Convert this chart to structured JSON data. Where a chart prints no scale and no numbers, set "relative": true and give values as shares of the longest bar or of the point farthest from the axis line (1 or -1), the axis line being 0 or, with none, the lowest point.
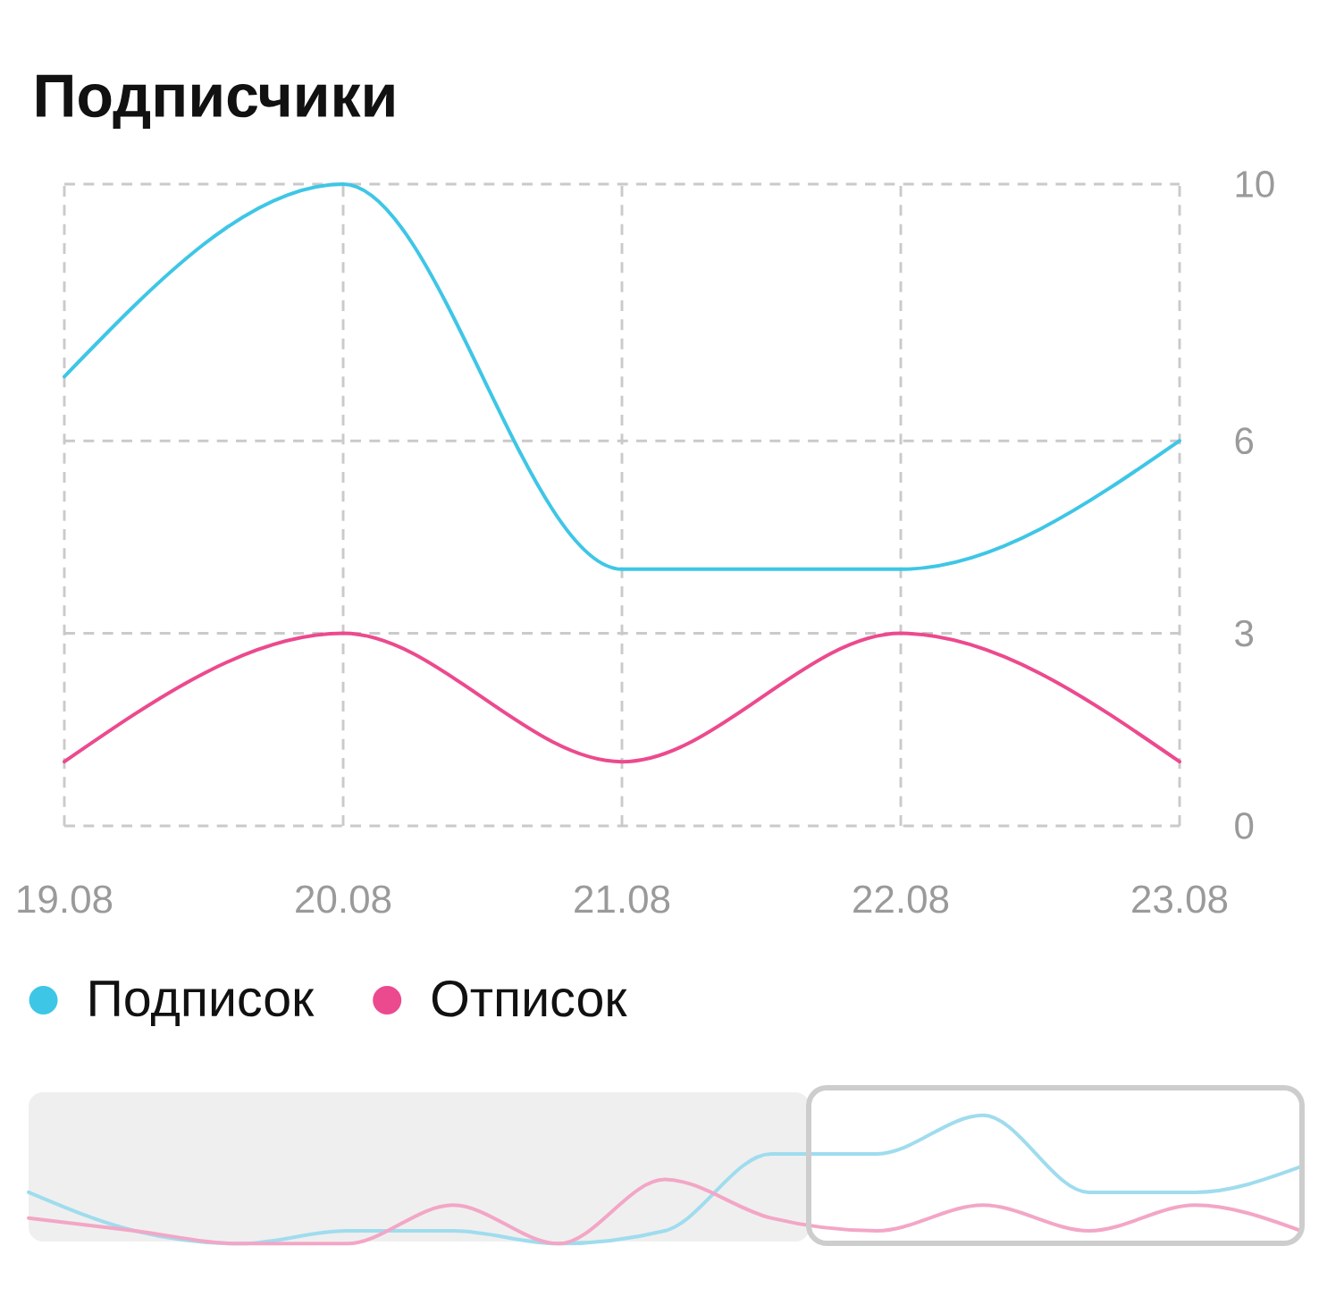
{
  "chart_data": [
    {
      "type": "line",
      "title": "Подписчики",
      "categories": [
        "19.08",
        "20.08",
        "21.08",
        "22.08",
        "23.08"
      ],
      "series": [
        {
          "name": "Подписок",
          "color": "#3ec6e6",
          "values": [
            7,
            10,
            4,
            4,
            6
          ]
        },
        {
          "name": "Отписок",
          "color": "#ec4a8e",
          "values": [
            1,
            3,
            1,
            3,
            1
          ]
        }
      ],
      "ylim": [
        0,
        10
      ],
      "yticks": [
        0,
        3,
        6,
        10
      ],
      "grid": true,
      "legend": "bottom left"
    },
    {
      "type": "line",
      "relative": true,
      "categories": [
        null,
        null,
        null,
        null,
        null,
        null,
        null,
        null,
        null,
        null,
        null,
        null,
        null
      ],
      "series": [
        {
          "color": "#9fdcee",
          "values": [
            0.4,
            0.1,
            0,
            0.1,
            0.1,
            0,
            0.1,
            0.7,
            0.7,
            1,
            0.4,
            0.4,
            0.6
          ]
        },
        {
          "color": "#f3a6c6",
          "values": [
            0.2,
            0.1,
            0,
            0,
            0.3,
            0,
            0.5,
            0.2,
            0.1,
            0.3,
            0.1,
            0.3,
            0.1
          ]
        }
      ]
    }
  ]
}
